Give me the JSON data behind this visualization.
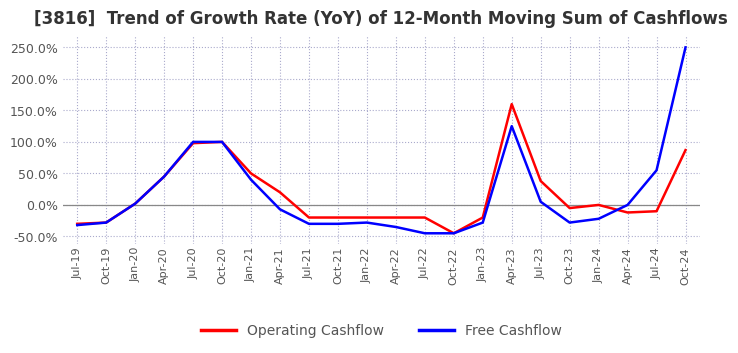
{
  "title": "[3816]  Trend of Growth Rate (YoY) of 12-Month Moving Sum of Cashflows",
  "title_fontsize": 12,
  "background_color": "#ffffff",
  "grid_color": "#aaaacc",
  "legend_labels": [
    "Operating Cashflow",
    "Free Cashflow"
  ],
  "legend_colors": [
    "#ff0000",
    "#0000ff"
  ],
  "x_labels": [
    "Jul-19",
    "Oct-19",
    "Jan-20",
    "Apr-20",
    "Jul-20",
    "Oct-20",
    "Jan-21",
    "Apr-21",
    "Jul-21",
    "Oct-21",
    "Jan-22",
    "Apr-22",
    "Jul-22",
    "Oct-22",
    "Jan-23",
    "Apr-23",
    "Jul-23",
    "Oct-23",
    "Jan-24",
    "Apr-24",
    "Jul-24",
    "Oct-24"
  ],
  "operating_cashflow": [
    -0.3,
    -0.28,
    0.02,
    0.45,
    0.98,
    1.0,
    0.5,
    0.2,
    -0.2,
    -0.2,
    -0.2,
    -0.2,
    -0.2,
    -0.45,
    -0.2,
    1.6,
    0.38,
    -0.05,
    0.0,
    -0.12,
    -0.1,
    0.87
  ],
  "free_cashflow": [
    -0.32,
    -0.28,
    0.02,
    0.45,
    1.0,
    1.0,
    0.4,
    -0.07,
    -0.3,
    -0.3,
    -0.28,
    -0.35,
    -0.45,
    -0.45,
    -0.28,
    1.25,
    0.05,
    -0.28,
    -0.22,
    0.0,
    0.55,
    2.5
  ],
  "yticks": [
    -0.5,
    0.0,
    0.5,
    1.0,
    1.5,
    2.0,
    2.5
  ],
  "ylim": [
    -0.62,
    2.7
  ]
}
